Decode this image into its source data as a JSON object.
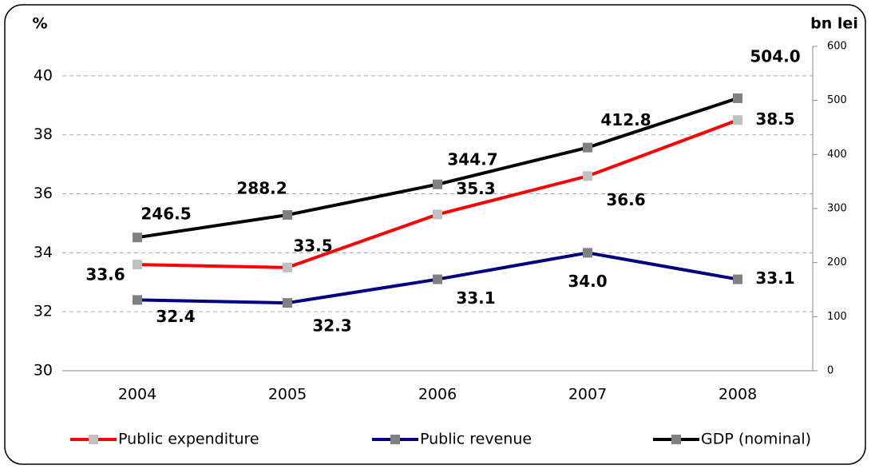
{
  "chart_data": {
    "type": "line",
    "y_axis_label": "%",
    "y2_axis_label": "bn lei",
    "categories": [
      "2004",
      "2005",
      "2006",
      "2007",
      "2008"
    ],
    "ylim": [
      30,
      41
    ],
    "yticks": [
      30,
      32,
      34,
      36,
      38,
      40
    ],
    "y2lim": [
      0,
      600
    ],
    "y2ticks": [
      0,
      100,
      200,
      300,
      400,
      500,
      600
    ],
    "grid": true,
    "legend": "bottom",
    "series": [
      {
        "name": "Public expenditure",
        "color": "#ff0000",
        "marker_color": "#c0c0c0",
        "values": [
          33.6,
          33.5,
          35.3,
          36.6,
          38.5
        ],
        "value_labels": [
          "33.6",
          "33.5",
          "35.3",
          "36.6",
          "38.5"
        ]
      },
      {
        "name": "Public revenue",
        "color": "#000080",
        "marker_color": "#808080",
        "values": [
          32.4,
          32.3,
          33.1,
          34.0,
          33.1
        ],
        "value_labels": [
          "32.4",
          "32.3",
          "33.1",
          "34.0",
          "33.1"
        ]
      },
      {
        "name": "GDP (nominal)",
        "color": "#000000",
        "marker_color": "#808080",
        "axis": "y2",
        "values": [
          246.5,
          288.2,
          344.7,
          412.8,
          504.0
        ],
        "value_labels": [
          "246.5",
          "288.2",
          "344.7",
          "412.8",
          "504.0"
        ]
      }
    ]
  }
}
